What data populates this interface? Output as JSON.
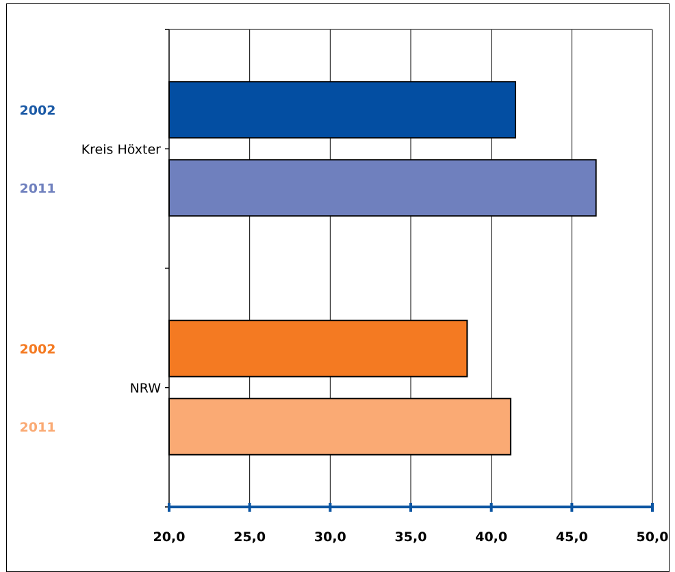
{
  "chart_data": {
    "type": "bar",
    "orientation": "horizontal",
    "title": "",
    "xlabel": "",
    "ylabel": "",
    "categories": [
      "Kreis Höxter",
      "NRW"
    ],
    "series_labels": [
      "2002",
      "2011"
    ],
    "groups": [
      {
        "category": "Kreis Höxter",
        "bars": [
          {
            "label": "2002",
            "value": 41.5,
            "color": "#034EA2",
            "label_color": "#1B5AA6"
          },
          {
            "label": "2011",
            "value": 46.5,
            "color": "#6F80BE",
            "label_color": "#6F80BE"
          }
        ]
      },
      {
        "category": "NRW",
        "bars": [
          {
            "label": "2002",
            "value": 38.5,
            "color": "#F47A22",
            "label_color": "#F47A22"
          },
          {
            "label": "2011",
            "value": 41.2,
            "color": "#FAAA74",
            "label_color": "#FAAA74"
          }
        ]
      }
    ],
    "xlim": [
      20,
      50
    ],
    "xticks": [
      20,
      25,
      30,
      35,
      40,
      45,
      50
    ],
    "xtick_labels": [
      "20,0",
      "25,0",
      "30,0",
      "35,0",
      "40,0",
      "45,0",
      "50,0"
    ],
    "grid": true,
    "legend": "none",
    "colors": {
      "axis": "#0B55A2",
      "grid": "#000000",
      "plot_border": "#808080",
      "bar_outline": "#000000",
      "text": "#000000"
    }
  }
}
